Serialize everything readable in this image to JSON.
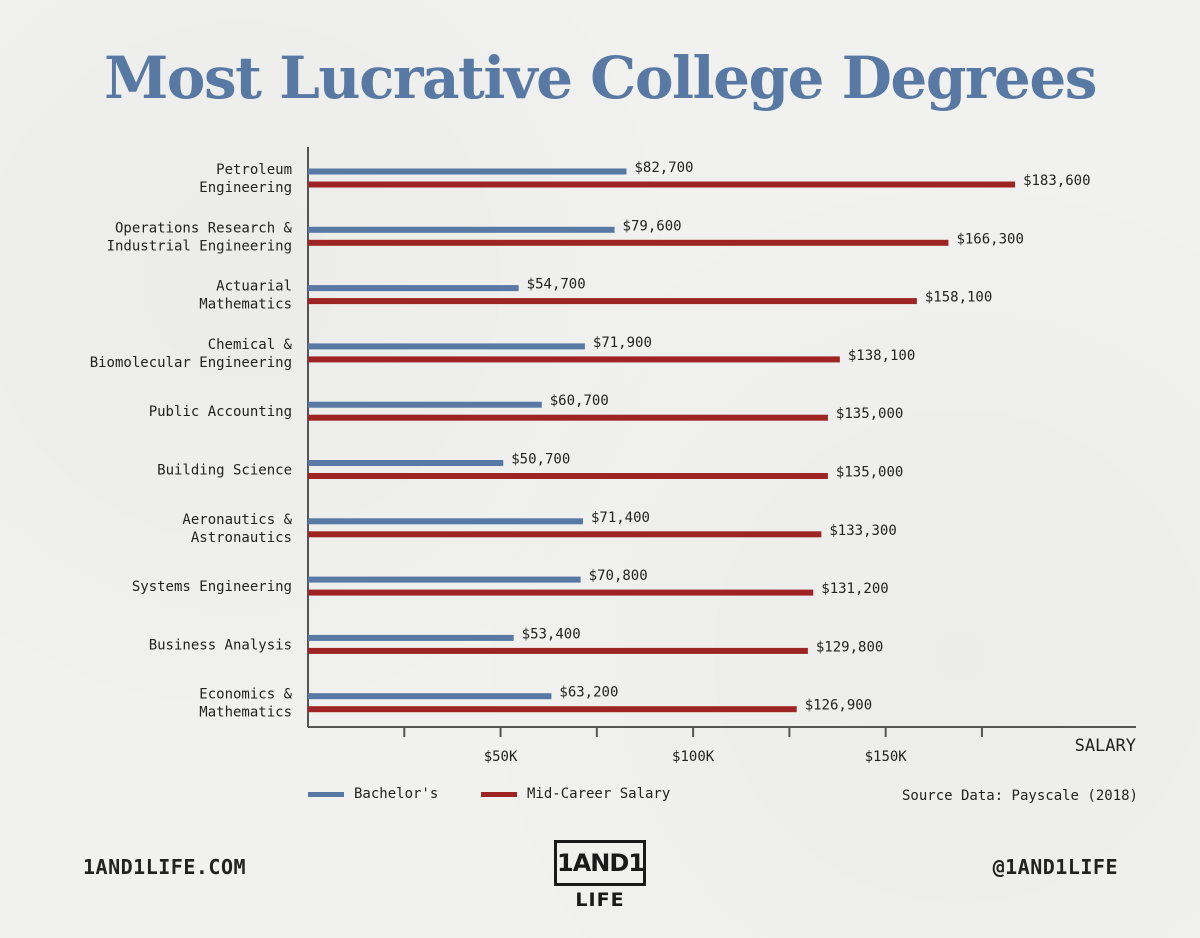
{
  "title": "Most Lucrative College Degrees",
  "chart_data": {
    "type": "bar",
    "orientation": "horizontal",
    "categories": [
      [
        "Petroleum",
        "Engineering"
      ],
      [
        "Operations Research &",
        "Industrial Engineering"
      ],
      [
        "Actuarial",
        "Mathematics"
      ],
      [
        "Chemical &",
        "Biomolecular Engineering"
      ],
      [
        "Public Accounting"
      ],
      [
        "Building Science"
      ],
      [
        "Aeronautics &",
        "Astronautics"
      ],
      [
        "Systems Engineering"
      ],
      [
        "Business Analysis"
      ],
      [
        "Economics &",
        "Mathematics"
      ]
    ],
    "series": [
      {
        "name": "Bachelor's",
        "color": "#5879a4",
        "values": [
          82700,
          79600,
          54700,
          71900,
          60700,
          50700,
          71400,
          70800,
          53400,
          63200
        ],
        "labels": [
          "$82,700",
          "$79,600",
          "$54,700",
          "$71,900",
          "$60,700",
          "$50,700",
          "$71,400",
          "$70,800",
          "$53,400",
          "$63,200"
        ]
      },
      {
        "name": "Mid-Career Salary",
        "color": "#9e2424",
        "values": [
          183600,
          166300,
          158100,
          138100,
          135000,
          135000,
          133300,
          131200,
          129800,
          126900
        ],
        "labels": [
          "$183,600",
          "$166,300",
          "$158,100",
          "$138,100",
          "$135,000",
          "$135,000",
          "$133,300",
          "$131,200",
          "$129,800",
          "$126,900"
        ]
      }
    ],
    "xlabel": "SALARY",
    "xlim": [
      0,
      215000
    ],
    "ticks": [
      25000,
      50000,
      75000,
      100000,
      125000,
      150000,
      175000
    ],
    "tick_labels": {
      "50000": "$50K",
      "100000": "$100K",
      "150000": "$150K"
    },
    "legend_position": "bottom-left",
    "grid": false
  },
  "legend": {
    "bachelors": "Bachelor's",
    "midcareer": "Mid-Career Salary"
  },
  "source": "Source Data: Payscale (2018)",
  "footer": {
    "website": "1AND1LIFE.COM",
    "handle": "@1AND1LIFE",
    "logo_top": "1AND1",
    "logo_bottom": "LIFE"
  }
}
